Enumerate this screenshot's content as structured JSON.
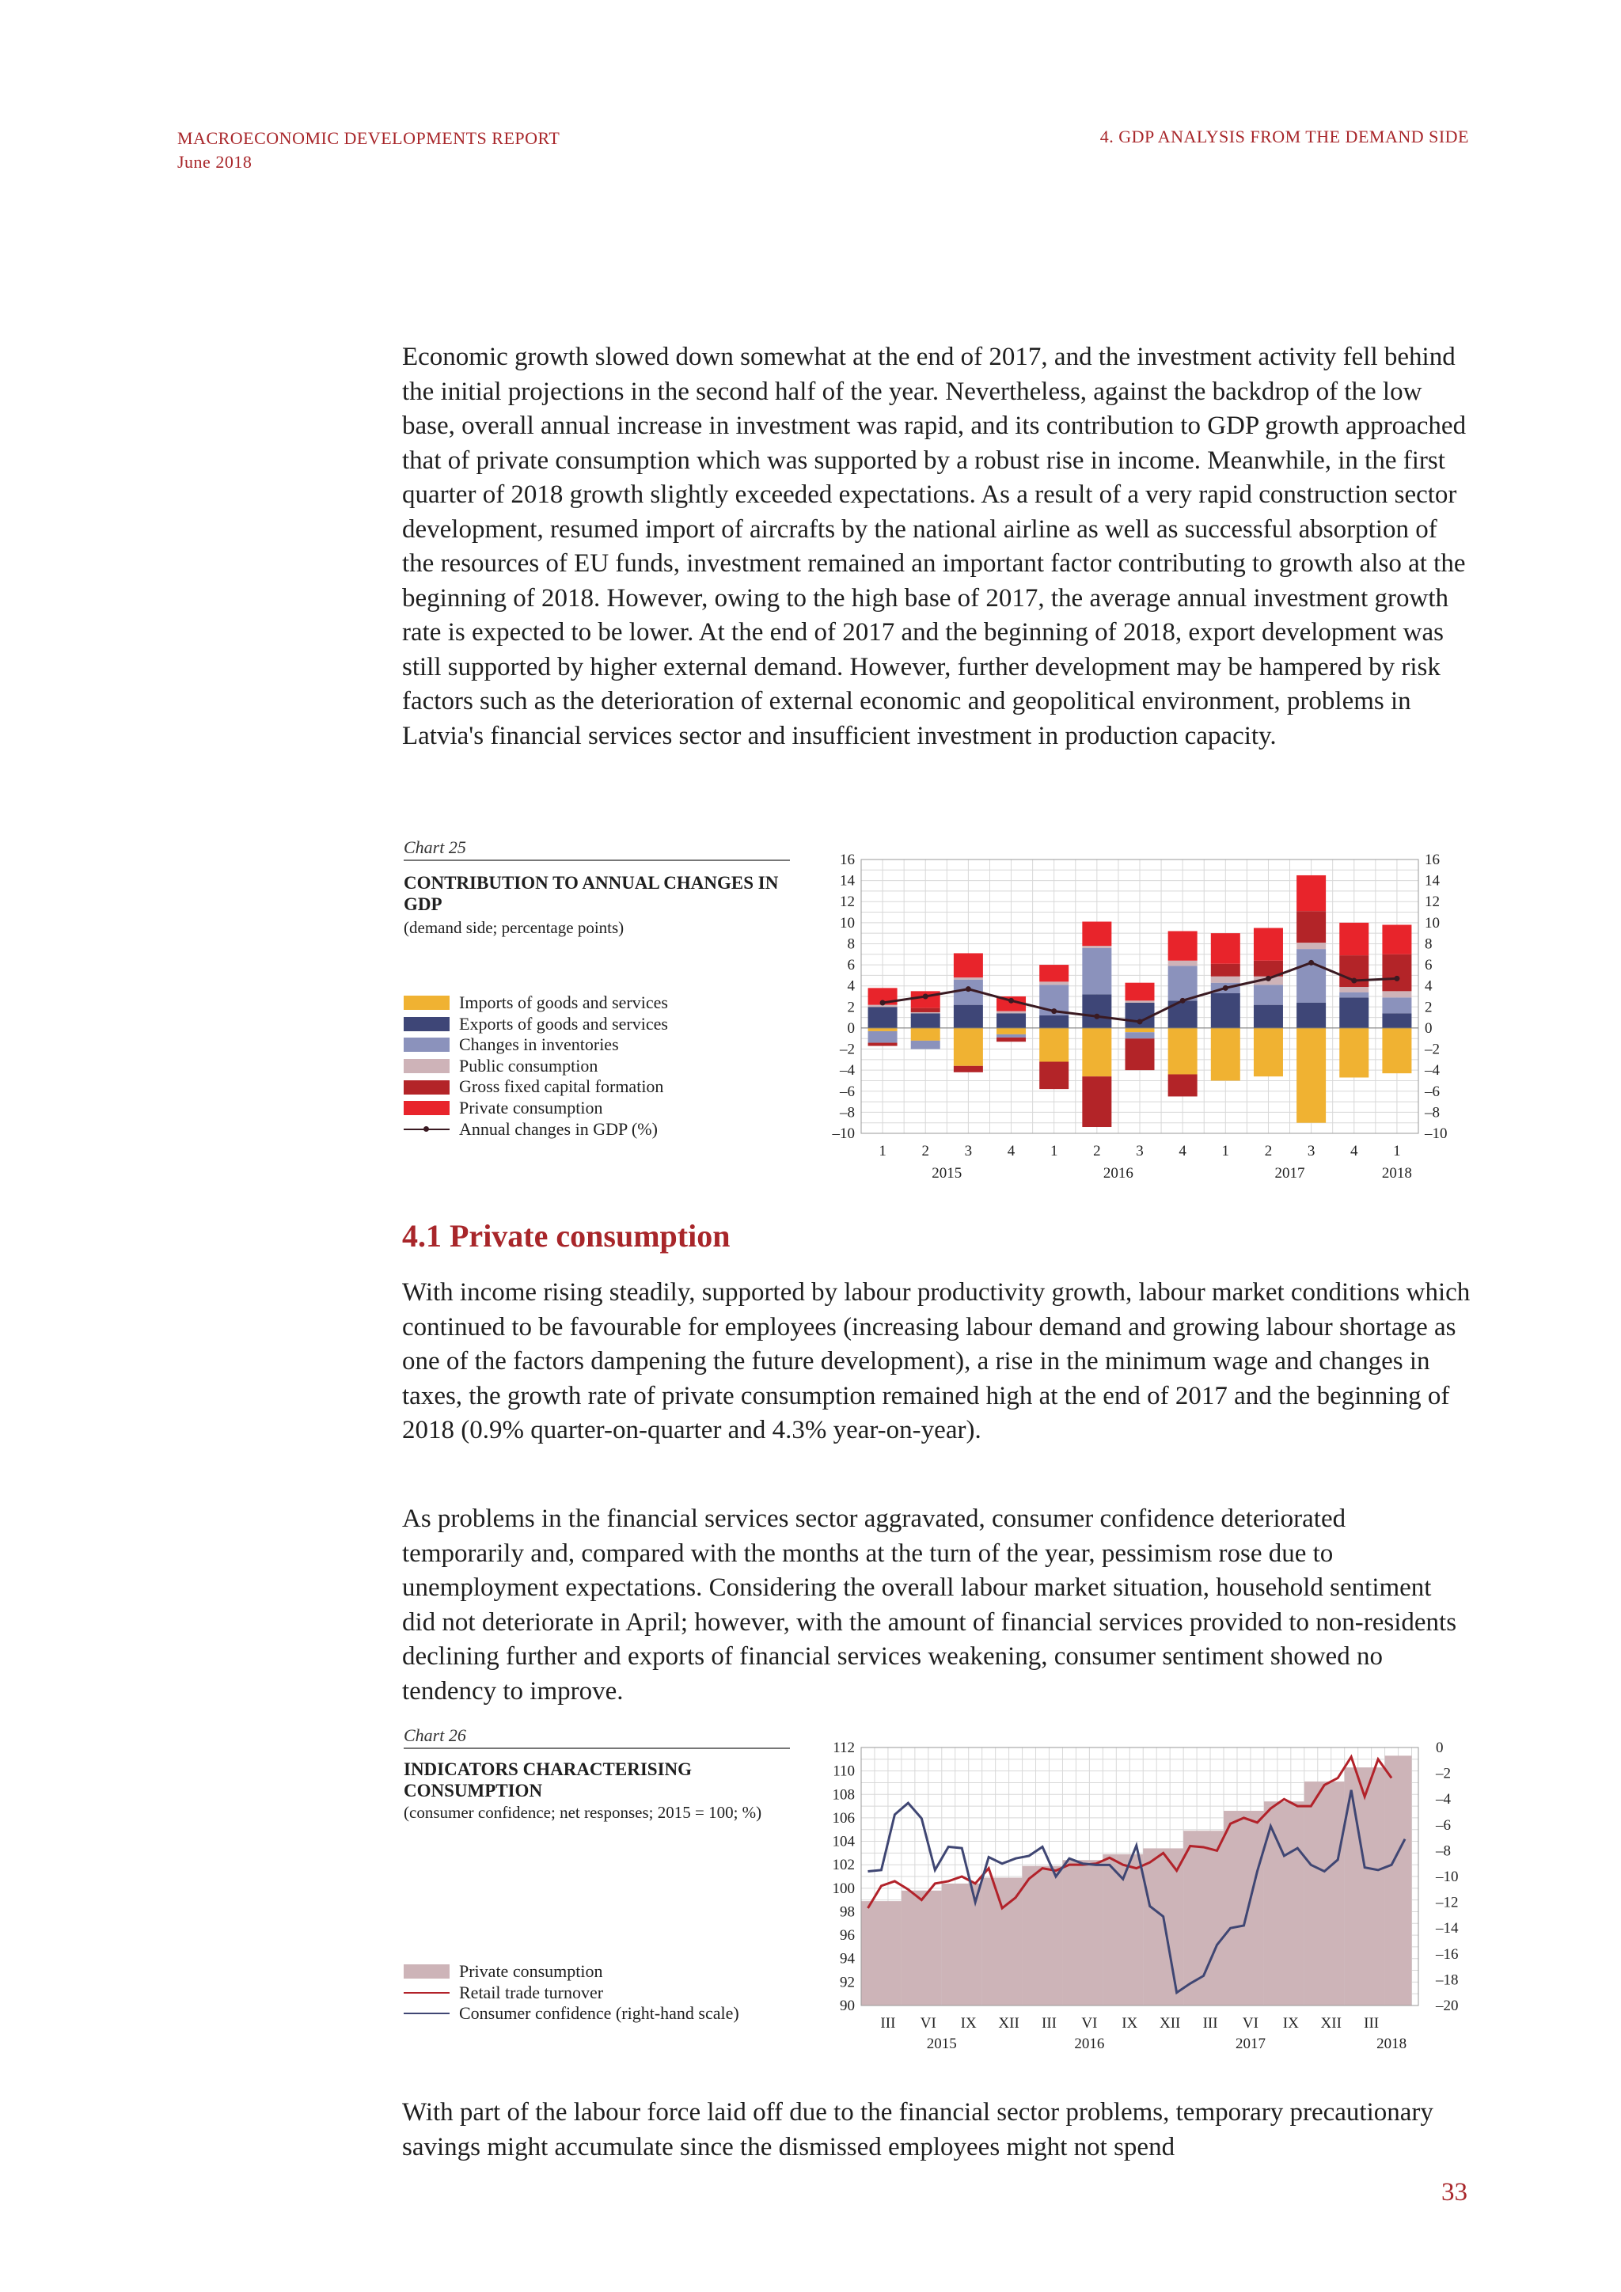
{
  "header": {
    "report_title": "MACROECONOMIC DEVELOPMENTS REPORT",
    "date": "June 2018",
    "section": "4. GDP ANALYSIS FROM THE DEMAND SIDE"
  },
  "paragraphs": {
    "intro": "Economic growth slowed down somewhat at the end of 2017, and the investment activity fell behind the initial projections in the second half of the year. Nevertheless, against the backdrop of the low base, overall annual increase in investment was rapid, and its contribution to GDP growth approached that of private consumption which was supported by a robust rise in income. Meanwhile, in the first quarter of 2018 growth slightly exceeded expectations. As a result of a very rapid construction sector development, resumed import of aircrafts by the national airline as well as successful absorption of the resources of EU funds, investment remained an important factor contributing to growth also at the beginning of 2018. However, owing to the high base of 2017, the average annual investment growth rate is expected to be lower. At the end of 2017 and the beginning of 2018, export development was still supported by higher external demand. However, further development may be hampered by risk factors such as the deterioration of external economic and geopolitical environment, problems in Latvia's financial services sector and insufficient investment in production capacity.",
    "pc1": "With income rising steadily, supported by labour productivity growth, labour market conditions which continued to be favourable for employees (increasing labour demand and growing labour shortage as one of the factors dampening the future development), a rise in the minimum wage and changes in taxes, the growth rate of private consumption remained high at the end of 2017 and the beginning of 2018 (0.9% quarter-on-quarter and 4.3% year-on-year).",
    "pc2": "As problems in the financial services sector aggravated, consumer confidence deteriorated temporarily and, compared with the months at the turn of the year, pessimism rose due to unemployment expectations. Considering the overall labour market situation, household sentiment did not deteriorate in April; however, with the amount of financial services provided to non-residents declining further and exports of financial services weakening, consumer sentiment showed no tendency to improve.",
    "pc3": "With part of the labour force laid off due to the financial sector problems, temporary precautionary savings might accumulate since the dismissed employees might not spend"
  },
  "section_heading": "4.1 Private consumption",
  "page_number": "33",
  "chart_data": [
    {
      "label": "Chart 25",
      "title": "CONTRIBUTION TO ANNUAL CHANGES IN GDP",
      "subtitle": "(demand side; percentage points)",
      "type": "bar",
      "stacked": true,
      "categories": [
        "1",
        "2",
        "3",
        "4",
        "1",
        "2",
        "3",
        "4",
        "1",
        "2",
        "3",
        "4",
        "1"
      ],
      "year_labels": [
        "2015",
        "2016",
        "2017",
        "2018"
      ],
      "ylim": [
        -10,
        16
      ],
      "y_ticks": [
        16,
        14,
        12,
        10,
        8,
        6,
        4,
        2,
        0,
        -2,
        -4,
        -6,
        -8,
        -10
      ],
      "y_tick_labels": [
        "16",
        "14",
        "12",
        "10",
        "8",
        "6",
        "4",
        "2",
        "0",
        "–2",
        "–4",
        "–6",
        "–8",
        "–10"
      ],
      "grid": true,
      "series": [
        {
          "name": "Imports of goods and services",
          "color": "#f0b232",
          "values": [
            -0.3,
            -1.2,
            -3.6,
            -0.6,
            -3.2,
            -4.6,
            -0.4,
            -4.4,
            -5.0,
            -4.6,
            -9.0,
            -4.7,
            -4.3
          ]
        },
        {
          "name": "Exports of goods and services",
          "color": "#3e4677",
          "values": [
            2.0,
            1.4,
            2.2,
            1.4,
            1.2,
            3.2,
            2.4,
            2.6,
            3.3,
            2.2,
            2.4,
            2.9,
            1.4
          ]
        },
        {
          "name": "Changes in inventories",
          "color": "#8b92bc",
          "values": [
            -1.1,
            -0.8,
            2.4,
            -0.3,
            2.9,
            4.4,
            -0.6,
            3.3,
            1.0,
            1.9,
            5.1,
            0.5,
            1.5
          ]
        },
        {
          "name": "Public consumption",
          "color": "#ceb3b8",
          "values": [
            0.2,
            0.1,
            0.2,
            0.2,
            0.3,
            0.2,
            0.2,
            0.5,
            0.6,
            0.8,
            0.6,
            0.5,
            0.6
          ]
        },
        {
          "name": "Gross fixed capital formation",
          "color": "#b32428",
          "values": [
            -0.3,
            0.4,
            -0.6,
            -0.4,
            -2.6,
            -4.8,
            -3.0,
            -2.1,
            1.2,
            1.5,
            3.0,
            3.0,
            3.5
          ]
        },
        {
          "name": "Private consumption",
          "color": "#e8242b",
          "values": [
            1.6,
            1.6,
            2.3,
            1.4,
            1.6,
            2.3,
            1.7,
            2.8,
            2.9,
            3.1,
            3.4,
            3.1,
            2.8
          ]
        }
      ],
      "line": {
        "name": "Annual changes in GDP (%)",
        "color": "#3a1a22",
        "values": [
          2.4,
          3.0,
          3.7,
          2.6,
          1.6,
          1.1,
          0.6,
          2.6,
          3.8,
          4.7,
          6.2,
          4.5,
          4.7
        ]
      }
    },
    {
      "label": "Chart 26",
      "title": "INDICATORS CHARACTERISING CONSUMPTION",
      "subtitle": "(consumer confidence; net responses; 2015 = 100; %)",
      "type": "area",
      "month_ticks": [
        "III",
        "VI",
        "IX",
        "XII",
        "III",
        "VI",
        "IX",
        "XII",
        "III",
        "VI",
        "IX",
        "XII",
        "III"
      ],
      "year_labels": [
        "2015",
        "2016",
        "2017",
        "2018"
      ],
      "left_ylim": [
        90,
        112
      ],
      "left_ticks": [
        "112",
        "110",
        "108",
        "106",
        "104",
        "102",
        "100",
        "98",
        "96",
        "94",
        "92",
        "90"
      ],
      "right_ylim": [
        -20,
        0
      ],
      "right_ticks": [
        "0",
        "–2",
        "–4",
        "–6",
        "–8",
        "–10",
        "–12",
        "–14",
        "–16",
        "–18",
        "–20"
      ],
      "grid": true,
      "series": [
        {
          "name": "Private consumption",
          "kind": "area",
          "axis": "left",
          "color": "#cdb4b8",
          "values": [
            98.9,
            99.8,
            100.4,
            100.9,
            101.9,
            102.4,
            102.9,
            103.4,
            104.9,
            106.6,
            107.4,
            109.1,
            110.3,
            111.3
          ]
        },
        {
          "name": "Retail trade turnover",
          "kind": "line",
          "axis": "left",
          "color": "#b2222a",
          "values": [
            98.3,
            100.2,
            100.6,
            99.9,
            99.0,
            100.4,
            100.6,
            101.0,
            100.4,
            101.7,
            98.3,
            99.2,
            100.8,
            101.7,
            101.5,
            102.0,
            102.0,
            102.1,
            102.6,
            102.0,
            101.7,
            102.2,
            103.0,
            101.5,
            103.6,
            103.5,
            103.2,
            105.5,
            106.0,
            105.6,
            106.8,
            107.6,
            107.0,
            107.0,
            108.8,
            109.4,
            111.2,
            107.8,
            111.0,
            109.4
          ]
        },
        {
          "name": "Consumer confidence (right-hand scale)",
          "kind": "line",
          "axis": "right",
          "color": "#3f4673",
          "values": [
            -9.6,
            -9.5,
            -5.2,
            -4.3,
            -5.5,
            -9.5,
            -7.7,
            -7.8,
            -12.0,
            -8.5,
            -9.0,
            -8.6,
            -8.4,
            -7.7,
            -10.0,
            -8.6,
            -9.0,
            -9.1,
            -9.1,
            -10.2,
            -7.6,
            -12.3,
            -13.1,
            -19.0,
            -18.3,
            -17.7,
            -15.3,
            -14.0,
            -13.8,
            -9.6,
            -6.1,
            -8.4,
            -7.8,
            -9.1,
            -9.6,
            -8.7,
            -3.3,
            -9.3,
            -9.5,
            -9.1,
            -7.1
          ]
        }
      ]
    }
  ]
}
